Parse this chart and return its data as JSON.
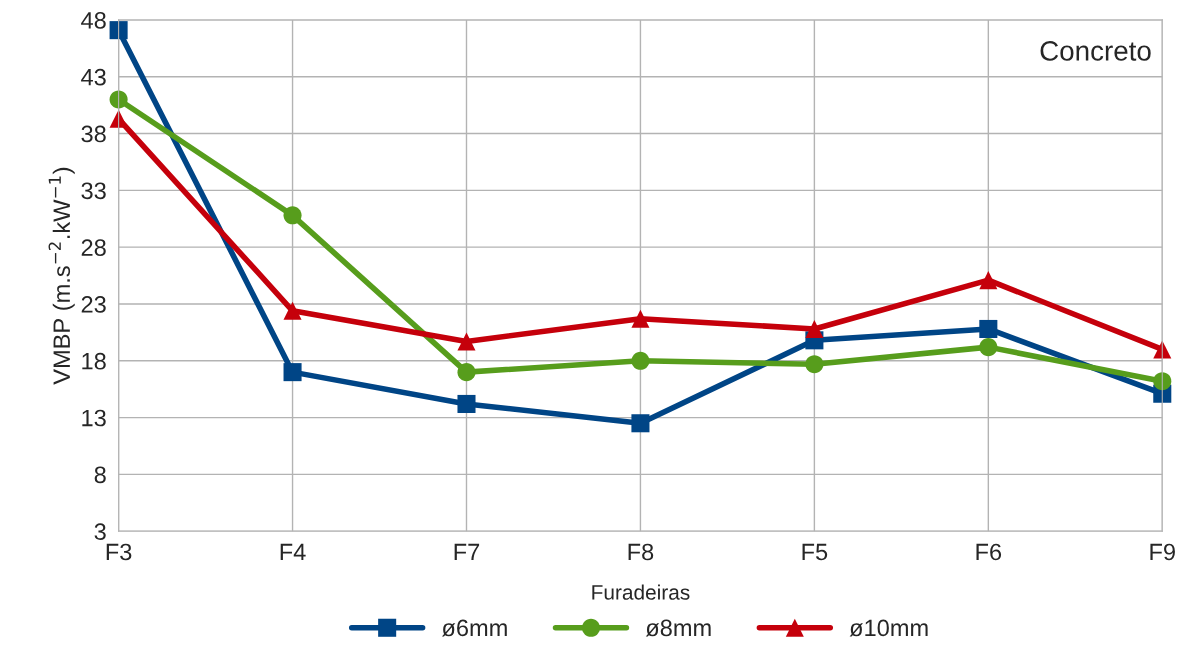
{
  "chart_data": {
    "type": "line",
    "xlabel": "Furadeiras",
    "ylabel": "VMBP (m.s$^{−2}$.kW$^{−1}$)",
    "categories": [
      "F3",
      "F4",
      "F7",
      "F8",
      "F5",
      "F6",
      "F9"
    ],
    "series": [
      {
        "name": "ø6mm",
        "color": "#004586",
        "marker": "square",
        "values": [
          47.1,
          17.0,
          14.2,
          12.5,
          19.8,
          20.8,
          15.1
        ]
      },
      {
        "name": "ø8mm",
        "color": "#579d1c",
        "marker": "circle",
        "values": [
          41.0,
          30.8,
          17.0,
          18.0,
          17.7,
          19.2,
          16.2
        ]
      },
      {
        "name": "ø10mm",
        "color": "#c5000b",
        "marker": "triangle",
        "values": [
          39.3,
          22.4,
          19.7,
          21.7,
          20.8,
          25.1,
          19.0
        ]
      }
    ],
    "ylim": [
      3,
      48
    ],
    "yticks": [
      3,
      8,
      13,
      18,
      23,
      28,
      33,
      38,
      43,
      48
    ],
    "grid": true,
    "legend": "bottom",
    "line_style": "solid",
    "annotations": [
      "Concreto"
    ]
  }
}
